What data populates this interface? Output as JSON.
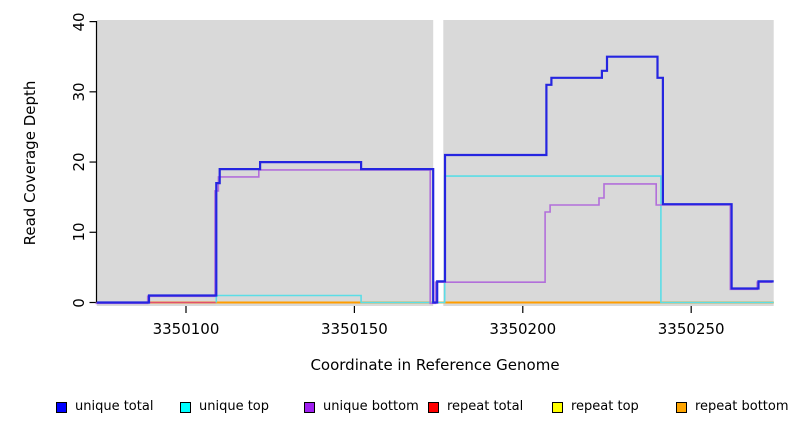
{
  "chart_data": {
    "type": "line",
    "step": true,
    "title": "",
    "xlabel": "Coordinate in Reference Genome",
    "ylabel": "Read Coverage Depth",
    "xlim": [
      3350073.5,
      3350274.5
    ],
    "ylim": [
      0,
      40
    ],
    "x_ticks": [
      3350100,
      3350150,
      3350200,
      3350250
    ],
    "y_ticks": [
      0,
      10,
      20,
      30,
      40
    ],
    "grid": "off",
    "plot_bg": "#d9d9d9",
    "axis_color": "#000000",
    "gap_x": [
      3350173.4,
      3350176.4
    ],
    "legend_position": "bottom",
    "series": [
      {
        "name": "repeat top",
        "color": "#f5f500",
        "lw": 1.4,
        "end": 3350274.5,
        "points": [
          [
            3350073.5,
            0
          ]
        ]
      },
      {
        "name": "repeat bottom",
        "color": "#ff9d00",
        "lw": 1.9,
        "end": 3350274.5,
        "points": [
          [
            3350073.5,
            0
          ]
        ]
      },
      {
        "name": "repeat total",
        "color": "#e0506e",
        "lw": 1.5,
        "end": 3350109,
        "points": [
          [
            3350089,
            0
          ]
        ]
      },
      {
        "name": "unique top",
        "color": "#5bdde6",
        "lw": 1.6,
        "end": 3350274.5,
        "points": [
          [
            3350109,
            0
          ],
          [
            3350109,
            1
          ],
          [
            3350152,
            0
          ],
          [
            3350176.8,
            18
          ],
          [
            3350241,
            0
          ]
        ]
      },
      {
        "name": "unique bottom",
        "color": "#b26fda",
        "lw": 1.6,
        "end": 3350274.5,
        "offset": [
          -1.3,
          0.8
        ],
        "points": [
          [
            3350073.5,
            0
          ],
          [
            3350089,
            1
          ],
          [
            3350109,
            16
          ],
          [
            3350110,
            18
          ],
          [
            3350122,
            19
          ],
          [
            3350172.9,
            0
          ],
          [
            3350174.5,
            3
          ],
          [
            3350207,
            13
          ],
          [
            3350208.5,
            14
          ],
          [
            3350223,
            15
          ],
          [
            3350224.5,
            17
          ],
          [
            3350240,
            14
          ],
          [
            3350262,
            2
          ],
          [
            3350270,
            3
          ]
        ]
      },
      {
        "name": "unique total",
        "color": "#2525e0",
        "lw": 2.2,
        "end": 3350274.5,
        "points": [
          [
            3350073.5,
            0
          ],
          [
            3350089,
            1
          ],
          [
            3350109,
            17
          ],
          [
            3350110,
            19
          ],
          [
            3350122,
            20
          ],
          [
            3350152,
            19
          ],
          [
            3350173.4,
            0
          ],
          [
            3350174.6,
            3
          ],
          [
            3350176.9,
            21
          ],
          [
            3350207,
            31
          ],
          [
            3350208.5,
            32
          ],
          [
            3350223.5,
            33
          ],
          [
            3350225,
            35
          ],
          [
            3350240,
            32
          ],
          [
            3350241.6,
            14
          ],
          [
            3350262,
            2
          ],
          [
            3350270,
            3
          ]
        ]
      }
    ]
  },
  "legend": {
    "items": [
      {
        "label": "unique total",
        "color": "#0000ff"
      },
      {
        "label": "unique top",
        "color": "#00ffff"
      },
      {
        "label": "unique bottom",
        "color": "#a020f0"
      },
      {
        "label": "repeat total",
        "color": "#ff0000"
      },
      {
        "label": "repeat top",
        "color": "#ffff00"
      },
      {
        "label": "repeat bottom",
        "color": "#ffa500"
      }
    ]
  }
}
